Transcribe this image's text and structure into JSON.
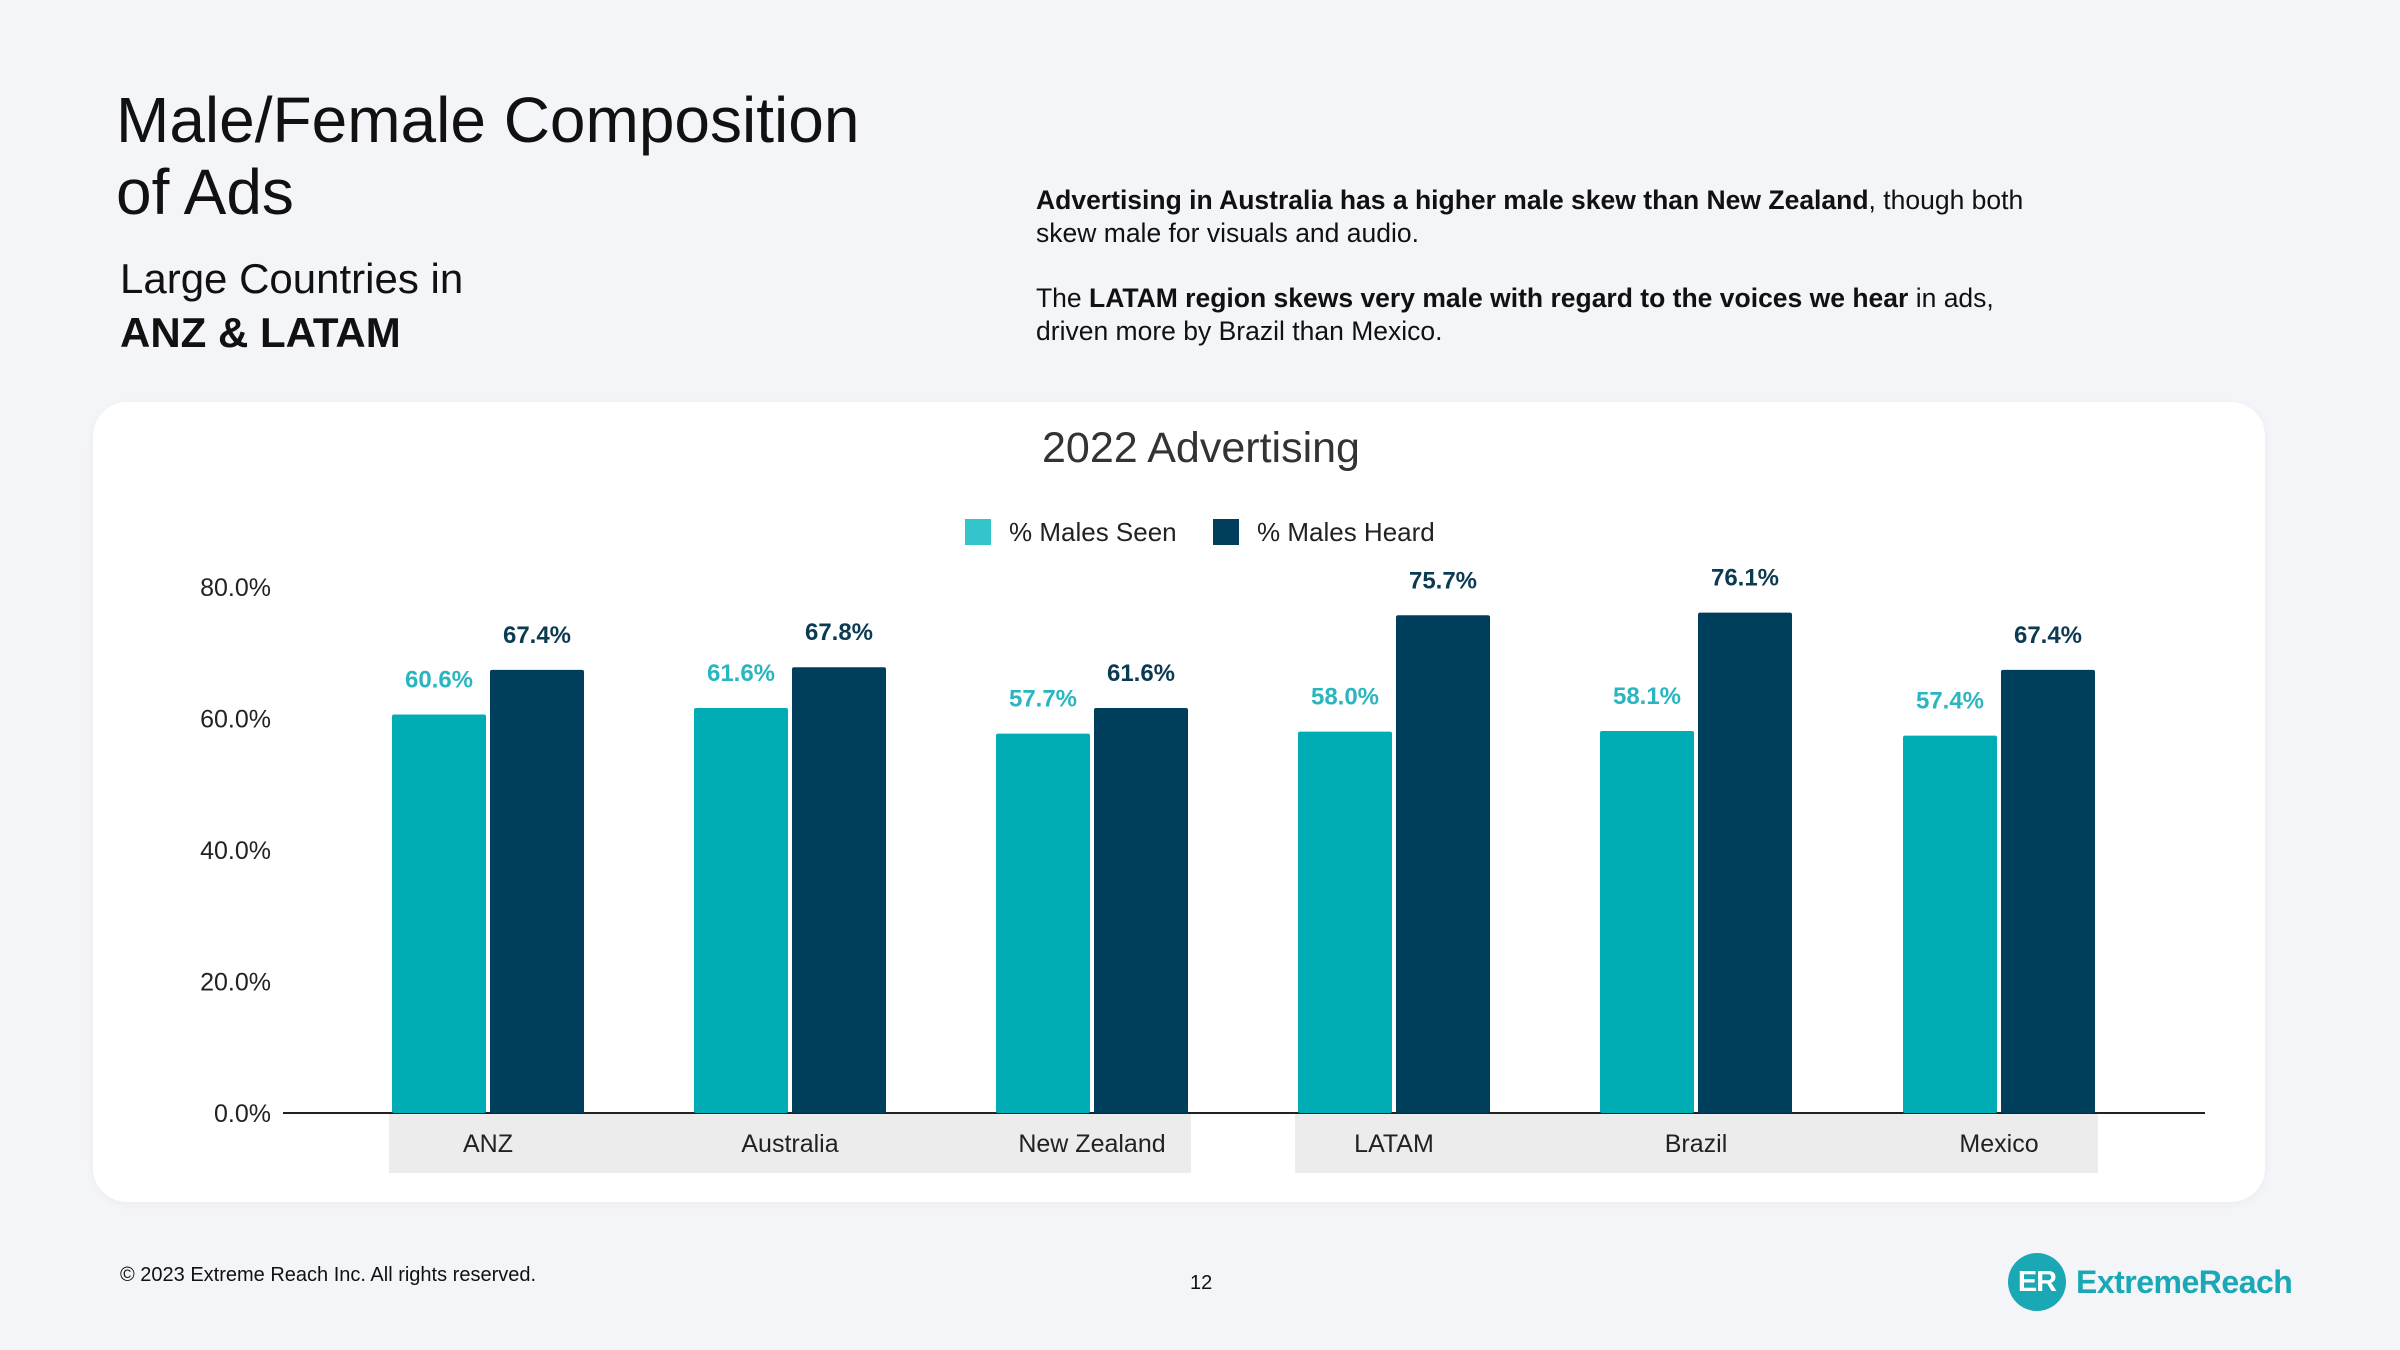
{
  "slide": {
    "title": "Male/Female Composition of Ads",
    "subtitle_line1": "Large Countries in",
    "subtitle_line2": "ANZ & LATAM",
    "desc1_bold": "Advertising in Australia has a higher male skew than New Zealand",
    "desc1_rest": ", though both skew male for visuals and audio.",
    "desc2_pre": "The ",
    "desc2_bold": "LATAM region skews very male with regard to the voices we hear",
    "desc2_rest": " in ads, driven more by Brazil than Mexico."
  },
  "footer": {
    "copyright": "© 2023 Extreme Reach Inc. All rights reserved.",
    "page_number": "12",
    "logo_mark": "ER",
    "logo_text": "ExtremeReach"
  },
  "colors": {
    "seen": "#00adb5",
    "heard": "#003f5c",
    "seen_label": "#2ab5c0",
    "heard_label": "#0b3a53",
    "group_band": "#ececec"
  },
  "chart_data": {
    "type": "bar",
    "title": "2022 Advertising",
    "categories": [
      "ANZ",
      "Australia",
      "New Zealand",
      "LATAM",
      "Brazil",
      "Mexico"
    ],
    "series": [
      {
        "name": "% Males Seen",
        "values": [
          60.6,
          61.6,
          57.7,
          58.0,
          58.1,
          57.4
        ],
        "labels": [
          "60.6%",
          "61.6%",
          "57.7%",
          "58.0%",
          "58.1%",
          "57.4%"
        ]
      },
      {
        "name": "% Males Heard",
        "values": [
          67.4,
          67.8,
          61.6,
          75.7,
          76.1,
          67.4
        ],
        "labels": [
          "67.4%",
          "67.8%",
          "61.6%",
          "75.7%",
          "76.1%",
          "67.4%"
        ]
      }
    ],
    "ylim": [
      0,
      80
    ],
    "yticks": [
      0,
      20,
      40,
      60,
      80
    ],
    "ytick_labels": [
      "0.0%",
      "20.0%",
      "40.0%",
      "60.0%",
      "80.0%"
    ],
    "legend_position": "top",
    "grid": false,
    "category_groups": [
      {
        "categories": [
          "ANZ",
          "Australia",
          "New Zealand"
        ]
      },
      {
        "categories": [
          "LATAM",
          "Brazil",
          "Mexico"
        ]
      }
    ]
  }
}
